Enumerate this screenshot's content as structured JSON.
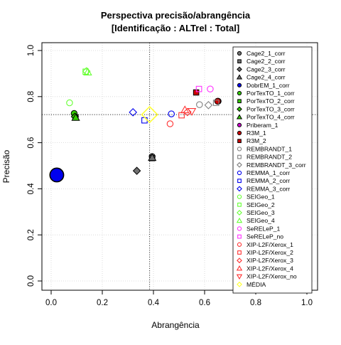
{
  "chart_data": {
    "type": "scatter",
    "title": [
      "Perspectiva precisão/abrangência",
      "[Identificação : ALTrel : Total]"
    ],
    "xlabel": "Abrangência",
    "ylabel": "Precisão",
    "xlim": [
      0,
      1
    ],
    "ylim": [
      0,
      1
    ],
    "x_ticks": [
      "0.0",
      "0.2",
      "0.4",
      "0.6",
      "0.8",
      "1.0"
    ],
    "y_ticks": [
      "0.0",
      "0.2",
      "0.4",
      "0.6",
      "0.8",
      "1.0"
    ],
    "grid": true,
    "legend_position": "right",
    "reference_lines": {
      "x": 0.385,
      "y": 0.722
    },
    "series": [
      {
        "name": "Cage2_1_corr",
        "shape": "circle",
        "filled": true,
        "color": "#707070",
        "x": 0.395,
        "y": 0.54
      },
      {
        "name": "Cage2_2_corr",
        "shape": "square",
        "filled": true,
        "color": "#707070",
        "x": 0.395,
        "y": 0.533
      },
      {
        "name": "Cage2_3_corr",
        "shape": "diamond",
        "filled": true,
        "color": "#707070",
        "x": 0.335,
        "y": 0.478
      },
      {
        "name": "Cage2_4_corr",
        "shape": "triangle-up",
        "filled": true,
        "color": "#707070",
        "x": 0.395,
        "y": 0.535
      },
      {
        "name": "DobrEM_1_corr",
        "shape": "circle",
        "filled": true,
        "color": "#0000ee",
        "x": 0.022,
        "y": 0.46,
        "size": 2.3
      },
      {
        "name": "PorTexTO_1_corr",
        "shape": "circle",
        "filled": true,
        "color": "#33cc00",
        "x": 0.09,
        "y": 0.727
      },
      {
        "name": "PorTexTO_2_corr",
        "shape": "square",
        "filled": true,
        "color": "#33cc00",
        "x": 0.095,
        "y": 0.71
      },
      {
        "name": "PorTexTO_3_corr",
        "shape": "diamond",
        "filled": true,
        "color": "#33cc00",
        "x": 0.093,
        "y": 0.713
      },
      {
        "name": "PorTexTO_4_corr",
        "shape": "triangle-up",
        "filled": true,
        "color": "#33cc00",
        "x": 0.096,
        "y": 0.709
      },
      {
        "name": "Priberam_1",
        "shape": "circle",
        "filled": true,
        "color": "#cc00cc",
        "x": 0.653,
        "y": 0.78
      },
      {
        "name": "R3M_1",
        "shape": "circle",
        "filled": true,
        "color": "#cc0000",
        "x": 0.651,
        "y": 0.78
      },
      {
        "name": "R3M_2",
        "shape": "square",
        "filled": true,
        "color": "#cc0000",
        "x": 0.567,
        "y": 0.818
      },
      {
        "name": "REMBRANDT_1",
        "shape": "circle",
        "filled": false,
        "color": "#808080",
        "x": 0.58,
        "y": 0.765
      },
      {
        "name": "REMBRANDT_2",
        "shape": "square",
        "filled": false,
        "color": "#808080",
        "x": 0.645,
        "y": 0.773
      },
      {
        "name": "REMBRANDT_3_corr",
        "shape": "diamond",
        "filled": false,
        "color": "#808080",
        "x": 0.615,
        "y": 0.763
      },
      {
        "name": "REMMA_1_corr",
        "shape": "circle",
        "filled": false,
        "color": "#0000ee",
        "x": 0.47,
        "y": 0.725
      },
      {
        "name": "REMMA_2_corr",
        "shape": "square",
        "filled": false,
        "color": "#0000ee",
        "x": 0.365,
        "y": 0.697
      },
      {
        "name": "REMMA_3_corr",
        "shape": "diamond",
        "filled": false,
        "color": "#0000ee",
        "x": 0.32,
        "y": 0.732
      },
      {
        "name": "SEIGeo_1",
        "shape": "circle",
        "filled": false,
        "color": "#66ff33",
        "x": 0.072,
        "y": 0.773
      },
      {
        "name": "SEIGeo_2",
        "shape": "square",
        "filled": false,
        "color": "#66ff33",
        "x": 0.135,
        "y": 0.908
      },
      {
        "name": "SEIGeo_3",
        "shape": "diamond",
        "filled": false,
        "color": "#66ff33",
        "x": 0.138,
        "y": 0.91
      },
      {
        "name": "SEIGeo_4",
        "shape": "triangle-up",
        "filled": false,
        "color": "#66ff33",
        "x": 0.143,
        "y": 0.906
      },
      {
        "name": "SeRELeP_1",
        "shape": "circle",
        "filled": false,
        "color": "#ff33ff",
        "x": 0.622,
        "y": 0.833
      },
      {
        "name": "SeRELeP_no",
        "shape": "square",
        "filled": false,
        "color": "#ff33ff",
        "x": 0.578,
        "y": 0.833
      },
      {
        "name": "XIP-L2F/Xerox_1",
        "shape": "circle",
        "filled": false,
        "color": "#ff3333",
        "x": 0.465,
        "y": 0.682
      },
      {
        "name": "XIP-L2F/Xerox_2",
        "shape": "square",
        "filled": false,
        "color": "#ff3333",
        "x": 0.51,
        "y": 0.719
      },
      {
        "name": "XIP-L2F/Xerox_3",
        "shape": "diamond",
        "filled": false,
        "color": "#ff3333",
        "x": 0.533,
        "y": 0.733
      },
      {
        "name": "XIP-L2F/Xerox_4",
        "shape": "triangle-up",
        "filled": false,
        "color": "#ff3333",
        "x": 0.523,
        "y": 0.742
      },
      {
        "name": "XIP-L2F/Xerox_no",
        "shape": "triangle-down",
        "filled": false,
        "color": "#ff3333",
        "x": 0.55,
        "y": 0.736
      },
      {
        "name": "MÉDIA",
        "shape": "diamond",
        "filled": false,
        "color": "#ffff33",
        "x": 0.385,
        "y": 0.722,
        "size": 2.2
      }
    ]
  }
}
